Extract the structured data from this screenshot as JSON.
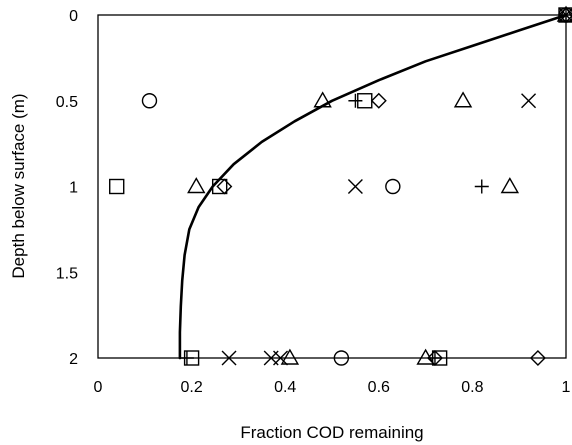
{
  "chart_data": {
    "type": "scatter",
    "xlabel": "Fraction COD remaining",
    "ylabel": "Depth below surface (m)",
    "xlim": [
      0,
      1
    ],
    "ylim": [
      0,
      2
    ],
    "y_inverted": true,
    "x_ticks": [
      "0",
      "0.2",
      "0.4",
      "0.6",
      "0.8",
      "1"
    ],
    "y_ticks": [
      "0",
      "0.5",
      "1",
      "1.5",
      "2"
    ],
    "grid": false,
    "legend": "none",
    "series": [
      {
        "marker": "square",
        "x": [
          1.0,
          0.57,
          0.04,
          0.26,
          0.2,
          0.73
        ],
        "y": [
          0,
          0.5,
          1,
          1,
          2,
          2
        ]
      },
      {
        "marker": "diamond",
        "x": [
          1.0,
          0.6,
          0.27,
          0.94,
          0.72
        ],
        "y": [
          0,
          0.5,
          1,
          2,
          2
        ]
      },
      {
        "marker": "triangle",
        "x": [
          1.0,
          0.48,
          0.78,
          0.21,
          0.88,
          0.41,
          0.7
        ],
        "y": [
          0,
          0.5,
          0.5,
          1,
          1,
          2,
          2
        ]
      },
      {
        "marker": "circle",
        "x": [
          1.0,
          0.11,
          0.63,
          0.52
        ],
        "y": [
          0,
          0.5,
          1,
          2
        ]
      },
      {
        "marker": "cross",
        "x": [
          1.0,
          0.92,
          0.55,
          0.28,
          0.37,
          0.39
        ],
        "y": [
          0,
          0.5,
          1,
          2,
          2,
          2
        ]
      },
      {
        "marker": "plus",
        "x": [
          1.0,
          0.55,
          0.82,
          0.19,
          0.72
        ],
        "y": [
          0,
          0.5,
          1,
          2,
          2
        ]
      }
    ],
    "curve": {
      "style": "line",
      "x": [
        1.0,
        0.9,
        0.8,
        0.7,
        0.6,
        0.5,
        0.42,
        0.35,
        0.29,
        0.245,
        0.215,
        0.195,
        0.185,
        0.18,
        0.177,
        0.175,
        0.175
      ],
      "y": [
        0,
        0.09,
        0.18,
        0.27,
        0.38,
        0.5,
        0.62,
        0.74,
        0.87,
        1.0,
        1.12,
        1.25,
        1.4,
        1.55,
        1.7,
        1.85,
        2.0
      ]
    }
  }
}
